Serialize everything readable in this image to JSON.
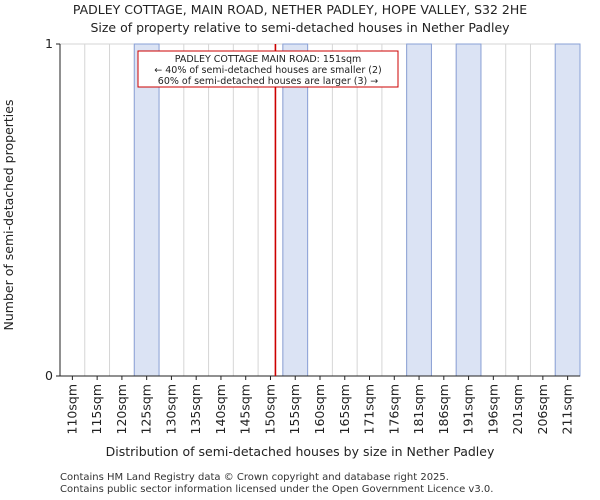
{
  "chart_data": {
    "type": "bar",
    "title": "PADLEY COTTAGE, MAIN ROAD, NETHER PADLEY, HOPE VALLEY, S32 2HE",
    "subtitle": "Size of property relative to semi-detached houses in Nether Padley",
    "xlabel": "Distribution of semi-detached houses by size in Nether Padley",
    "ylabel": "Number of semi-detached properties",
    "categories": [
      "110sqm",
      "115sqm",
      "120sqm",
      "125sqm",
      "130sqm",
      "135sqm",
      "140sqm",
      "145sqm",
      "150sqm",
      "155sqm",
      "160sqm",
      "165sqm",
      "171sqm",
      "176sqm",
      "181sqm",
      "186sqm",
      "191sqm",
      "196sqm",
      "201sqm",
      "206sqm",
      "211sqm"
    ],
    "values": [
      0,
      0,
      0,
      1,
      0,
      0,
      0,
      0,
      0,
      1,
      0,
      0,
      0,
      0,
      1,
      0,
      1,
      0,
      0,
      0,
      1
    ],
    "yticks": [
      0,
      1
    ],
    "ylim": [
      0,
      1
    ],
    "bar_color": "#dbe3f4",
    "bar_edge_color": "#8aa0d6",
    "background_color": "#f3f6fc",
    "marker": {
      "value": 151,
      "label": "PADLEY COTTAGE MAIN ROAD: 151sqm",
      "line_color": "#cc0000"
    },
    "annotation": {
      "lines": [
        "PADLEY COTTAGE MAIN ROAD: 151sqm",
        "← 40% of semi-detached houses are smaller (2)",
        "60% of semi-detached houses are larger (3) →"
      ]
    }
  },
  "footer": {
    "line1": "Contains HM Land Registry data © Crown copyright and database right 2025.",
    "line2": "Contains public sector information licensed under the Open Government Licence v3.0."
  }
}
